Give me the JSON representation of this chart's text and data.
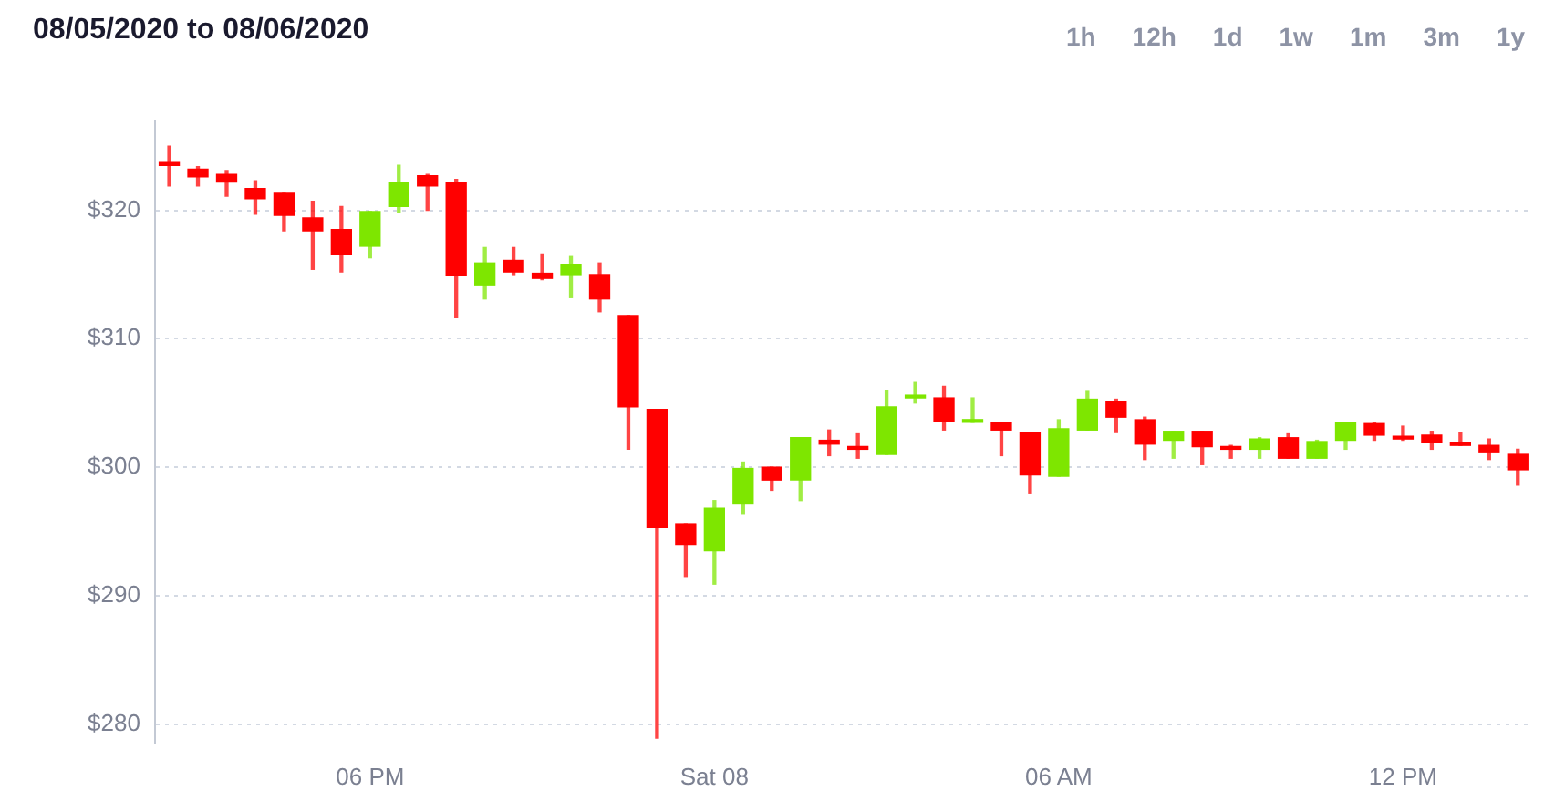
{
  "chart_data": {
    "type": "candlestick",
    "title": "08/05/2020 to 08/06/2020",
    "annotations": [
      "1h",
      "12h",
      "1d",
      "1w",
      "1m",
      "3m",
      "1y"
    ],
    "categories": [
      null,
      null,
      null,
      null,
      null,
      null,
      null,
      "06 PM",
      null,
      null,
      null,
      null,
      null,
      null,
      null,
      null,
      null,
      null,
      null,
      "Sat 08",
      null,
      null,
      null,
      null,
      null,
      null,
      null,
      null,
      null,
      null,
      null,
      "06 AM",
      null,
      null,
      null,
      null,
      null,
      null,
      null,
      null,
      null,
      null,
      null,
      "12 PM",
      null,
      null,
      null,
      null
    ],
    "ohlc": [
      [
        323.6,
        325.0,
        321.9,
        323.5
      ],
      [
        323.2,
        323.4,
        321.9,
        322.6
      ],
      [
        322.8,
        323.1,
        321.1,
        322.2
      ],
      [
        321.7,
        322.3,
        319.7,
        320.9
      ],
      [
        321.4,
        321.4,
        318.4,
        319.6
      ],
      [
        319.4,
        320.7,
        315.4,
        318.4
      ],
      [
        318.5,
        320.3,
        315.2,
        316.6
      ],
      [
        317.2,
        319.9,
        316.3,
        319.9
      ],
      [
        320.3,
        323.5,
        319.8,
        322.2
      ],
      [
        322.7,
        322.8,
        320.0,
        321.9
      ],
      [
        322.2,
        322.4,
        311.7,
        314.9
      ],
      [
        314.2,
        317.1,
        313.1,
        315.9
      ],
      [
        316.1,
        317.1,
        315.0,
        315.2
      ],
      [
        315.1,
        316.6,
        314.6,
        314.7
      ],
      [
        315.0,
        316.4,
        313.2,
        315.8
      ],
      [
        315.0,
        315.9,
        312.1,
        313.1
      ],
      [
        311.8,
        311.8,
        301.4,
        304.7
      ],
      [
        304.5,
        304.5,
        278.9,
        295.3
      ],
      [
        295.6,
        295.6,
        291.5,
        294.0
      ],
      [
        293.5,
        297.4,
        290.9,
        296.8
      ],
      [
        297.2,
        300.4,
        296.4,
        299.9
      ],
      [
        300.0,
        300.0,
        298.2,
        299.0
      ],
      [
        299.0,
        302.3,
        297.4,
        302.3
      ],
      [
        302.1,
        302.9,
        300.9,
        301.8
      ],
      [
        301.6,
        302.6,
        300.7,
        301.4
      ],
      [
        301.0,
        306.0,
        301.0,
        304.7
      ],
      [
        305.4,
        306.6,
        305.0,
        305.6
      ],
      [
        305.4,
        306.3,
        302.9,
        303.6
      ],
      [
        303.5,
        305.4,
        303.5,
        303.6
      ],
      [
        303.5,
        303.5,
        300.9,
        302.9
      ],
      [
        302.7,
        302.7,
        298.0,
        299.4
      ],
      [
        299.3,
        303.7,
        299.3,
        303.0
      ],
      [
        302.9,
        305.9,
        302.9,
        305.3
      ],
      [
        305.1,
        305.3,
        302.7,
        303.9
      ],
      [
        303.7,
        303.9,
        300.6,
        301.8
      ],
      [
        302.1,
        302.8,
        300.7,
        302.8
      ],
      [
        302.8,
        302.8,
        300.2,
        301.6
      ],
      [
        301.6,
        301.7,
        300.7,
        301.4
      ],
      [
        301.4,
        302.3,
        300.7,
        302.2
      ],
      [
        302.3,
        302.6,
        300.7,
        300.7
      ],
      [
        300.7,
        302.1,
        300.7,
        302.0
      ],
      [
        302.1,
        303.5,
        301.4,
        303.5
      ],
      [
        303.4,
        303.5,
        302.1,
        302.5
      ],
      [
        302.4,
        303.2,
        302.1,
        302.2
      ],
      [
        302.5,
        302.8,
        301.4,
        301.9
      ],
      [
        301.9,
        302.7,
        301.7,
        301.7
      ],
      [
        301.7,
        302.2,
        300.6,
        301.2
      ],
      [
        301.0,
        301.4,
        298.6,
        299.8
      ]
    ],
    "colors": [
      "#ff0000",
      "#ff0000",
      "#ff0000",
      "#ff0000",
      "#ff0000",
      "#ff0000",
      "#ff0000",
      "#7ee600",
      "#7ee600",
      "#ff0000",
      "#ff0000",
      "#7ee600",
      "#ff0000",
      "#ff0000",
      "#7ee600",
      "#ff0000",
      "#ff0000",
      "#ff0000",
      "#ff0000",
      "#7ee600",
      "#7ee600",
      "#ff0000",
      "#7ee600",
      "#ff0000",
      "#ff0000",
      "#7ee600",
      "#7ee600",
      "#ff0000",
      "#7ee600",
      "#ff0000",
      "#ff0000",
      "#7ee600",
      "#7ee600",
      "#ff0000",
      "#ff0000",
      "#7ee600",
      "#ff0000",
      "#ff0000",
      "#7ee600",
      "#ff0000",
      "#7ee600",
      "#7ee600",
      "#ff0000",
      "#ff0000",
      "#ff0000",
      "#ff0000",
      "#ff0000",
      "#ff0000"
    ],
    "ylim": [
      278.5,
      327
    ],
    "yticks": [
      {
        "value": 280,
        "label": "$280"
      },
      {
        "value": 290,
        "label": "$290"
      },
      {
        "value": 300,
        "label": "$300"
      },
      {
        "value": 310,
        "label": "$310"
      },
      {
        "value": 320,
        "label": "$320"
      }
    ],
    "grid": "y"
  }
}
